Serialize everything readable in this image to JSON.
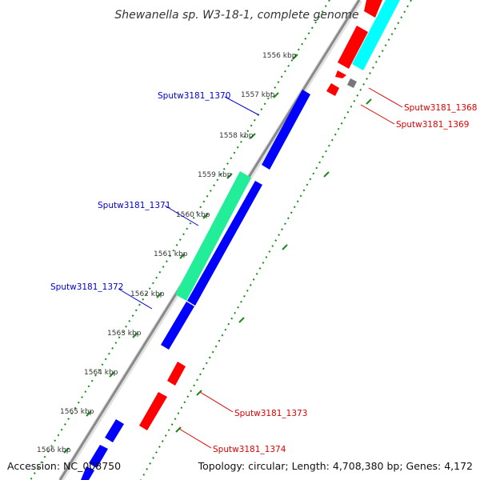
{
  "title": "Shewanella sp. W3-18-1, complete genome",
  "footer": {
    "accession": "Accession: NC_008750",
    "topology": "Topology: circular; Length: 4,708,380 bp; Genes: 4,172"
  },
  "colors": {
    "forward_cds": "#0000ff",
    "reverse_cds": "#ff0000",
    "forward_other": "#22ee99",
    "reverse_other": "#00ffff",
    "backbone": "#888888",
    "tick": "#008800"
  },
  "kbp_ticks": [
    "1556 kbp",
    "1557 kbp",
    "1558 kbp",
    "1559 kbp",
    "1560 kbp",
    "1561 kbp",
    "1562 kbp",
    "1563 kbp",
    "1564 kbp",
    "1565 kbp",
    "1566 kbp"
  ],
  "gene_labels": [
    {
      "text": "Sputw3181_1370",
      "color": "#0000cc"
    },
    {
      "text": "Sputw3181_1371",
      "color": "#0000cc"
    },
    {
      "text": "Sputw3181_1372",
      "color": "#0000cc"
    },
    {
      "text": "Sputw3181_1368",
      "color": "#dd0000"
    },
    {
      "text": "Sputw3181_1369",
      "color": "#dd0000"
    },
    {
      "text": "Sputw3181_1373",
      "color": "#dd0000"
    },
    {
      "text": "Sputw3181_1374",
      "color": "#dd0000"
    }
  ]
}
